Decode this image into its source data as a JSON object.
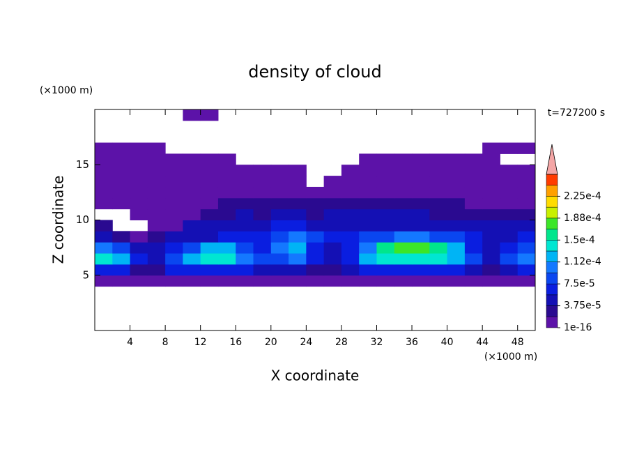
{
  "chart_data": {
    "type": "heatmap",
    "title": "density of cloud",
    "x_label": "X coordinate",
    "y_label": "Z coordinate",
    "x_unit": "(×1000 m)",
    "y_unit": "(×1000 m)",
    "time_label": "t=727200 s",
    "xlim": [
      0,
      50
    ],
    "ylim": [
      0,
      20
    ],
    "xticks": [
      4,
      8,
      12,
      16,
      20,
      24,
      28,
      32,
      36,
      40,
      44,
      48
    ],
    "yticks": [
      5,
      10,
      15
    ],
    "x": [
      1,
      3,
      5,
      7,
      9,
      11,
      13,
      15,
      17,
      19,
      21,
      23,
      25,
      27,
      29,
      31,
      33,
      35,
      37,
      39,
      41,
      43,
      45,
      47,
      49
    ],
    "y": [
      0.5,
      1.5,
      2.5,
      3.5,
      4.5,
      5.5,
      6.5,
      7.5,
      8.5,
      9.5,
      10.5,
      11.5,
      12.5,
      13.5,
      14.5,
      15.5,
      16.5,
      17.5,
      18.5,
      19.5
    ],
    "values": [
      [
        null,
        null,
        null,
        null,
        null,
        null,
        null,
        null,
        null,
        null,
        null,
        null,
        null,
        null,
        null,
        null,
        null,
        null,
        null,
        null,
        null,
        null,
        null,
        null,
        null
      ],
      [
        null,
        null,
        null,
        null,
        null,
        null,
        null,
        null,
        null,
        null,
        null,
        null,
        null,
        null,
        null,
        null,
        null,
        null,
        null,
        null,
        null,
        null,
        null,
        null,
        null
      ],
      [
        null,
        null,
        null,
        null,
        null,
        null,
        null,
        null,
        null,
        null,
        null,
        null,
        null,
        null,
        null,
        null,
        null,
        null,
        null,
        null,
        null,
        null,
        null,
        null,
        null
      ],
      [
        null,
        null,
        null,
        null,
        null,
        null,
        null,
        null,
        null,
        null,
        null,
        null,
        null,
        null,
        null,
        null,
        null,
        null,
        null,
        null,
        null,
        null,
        null,
        null,
        null
      ],
      [
        5e-06,
        5e-06,
        5e-06,
        5e-06,
        5e-06,
        5e-06,
        5e-06,
        5e-06,
        5e-06,
        5e-06,
        5e-06,
        5e-06,
        5e-06,
        5e-06,
        5e-06,
        5e-06,
        5e-06,
        5e-06,
        5e-06,
        5e-06,
        5e-06,
        5e-06,
        5e-06,
        5e-06,
        5e-06
      ],
      [
        6.5e-05,
        6.5e-05,
        2.5e-05,
        2.5e-05,
        6.5e-05,
        6.5e-05,
        6.5e-05,
        6.5e-05,
        6.5e-05,
        4.5e-05,
        4.5e-05,
        4.5e-05,
        2.5e-05,
        2.5e-05,
        4.5e-05,
        6.5e-05,
        6.5e-05,
        6.5e-05,
        6.5e-05,
        6.5e-05,
        6.5e-05,
        4.5e-05,
        2.5e-05,
        4.5e-05,
        6.5e-05
      ],
      [
        0.00014,
        0.00012,
        6.5e-05,
        4.5e-05,
        8e-05,
        0.00012,
        0.00014,
        0.00014,
        0.0001,
        8e-05,
        8e-05,
        0.0001,
        6.5e-05,
        4.5e-05,
        6.5e-05,
        0.00012,
        0.00014,
        0.00014,
        0.00014,
        0.00014,
        0.00012,
        8e-05,
        4.5e-05,
        8e-05,
        0.0001
      ],
      [
        0.0001,
        8e-05,
        4.5e-05,
        4.5e-05,
        6.5e-05,
        8e-05,
        0.00012,
        0.00012,
        8e-05,
        6.5e-05,
        0.0001,
        0.00012,
        6.5e-05,
        4.5e-05,
        6.5e-05,
        0.0001,
        0.00016,
        0.000175,
        0.000175,
        0.00016,
        0.00012,
        6.5e-05,
        4.5e-05,
        6.5e-05,
        8e-05
      ],
      [
        4.5e-05,
        2.5e-05,
        5e-06,
        2.5e-05,
        4.5e-05,
        4.5e-05,
        4.5e-05,
        6.5e-05,
        6.5e-05,
        6.5e-05,
        8e-05,
        0.0001,
        8e-05,
        6.5e-05,
        6.5e-05,
        8e-05,
        8e-05,
        0.0001,
        0.0001,
        8e-05,
        8e-05,
        6.5e-05,
        4.5e-05,
        4.5e-05,
        6.5e-05
      ],
      [
        2.5e-05,
        null,
        null,
        5e-06,
        5e-06,
        4.5e-05,
        4.5e-05,
        4.5e-05,
        4.5e-05,
        4.5e-05,
        6.5e-05,
        6.5e-05,
        4.5e-05,
        4.5e-05,
        4.5e-05,
        4.5e-05,
        4.5e-05,
        4.5e-05,
        4.5e-05,
        4.5e-05,
        4.5e-05,
        4.5e-05,
        4.5e-05,
        4.5e-05,
        4.5e-05
      ],
      [
        null,
        null,
        5e-06,
        5e-06,
        5e-06,
        5e-06,
        2.5e-05,
        2.5e-05,
        4.5e-05,
        2.5e-05,
        4.5e-05,
        4.5e-05,
        2.5e-05,
        4.5e-05,
        4.5e-05,
        4.5e-05,
        4.5e-05,
        4.5e-05,
        4.5e-05,
        2.5e-05,
        2.5e-05,
        2.5e-05,
        2.5e-05,
        2.5e-05,
        2.5e-05
      ],
      [
        5e-06,
        5e-06,
        5e-06,
        5e-06,
        5e-06,
        5e-06,
        5e-06,
        2.5e-05,
        2.5e-05,
        2.5e-05,
        2.5e-05,
        2.5e-05,
        2.5e-05,
        2.5e-05,
        2.5e-05,
        2.5e-05,
        2.5e-05,
        2.5e-05,
        2.5e-05,
        2.5e-05,
        2.5e-05,
        5e-06,
        5e-06,
        5e-06,
        5e-06
      ],
      [
        5e-06,
        5e-06,
        5e-06,
        5e-06,
        5e-06,
        5e-06,
        5e-06,
        5e-06,
        5e-06,
        5e-06,
        5e-06,
        5e-06,
        5e-06,
        5e-06,
        5e-06,
        5e-06,
        5e-06,
        5e-06,
        5e-06,
        5e-06,
        5e-06,
        5e-06,
        5e-06,
        5e-06,
        5e-06
      ],
      [
        5e-06,
        5e-06,
        5e-06,
        5e-06,
        5e-06,
        5e-06,
        5e-06,
        5e-06,
        5e-06,
        5e-06,
        5e-06,
        5e-06,
        null,
        5e-06,
        5e-06,
        5e-06,
        5e-06,
        5e-06,
        5e-06,
        5e-06,
        5e-06,
        5e-06,
        5e-06,
        5e-06,
        5e-06
      ],
      [
        5e-06,
        5e-06,
        5e-06,
        5e-06,
        5e-06,
        5e-06,
        5e-06,
        5e-06,
        5e-06,
        5e-06,
        5e-06,
        5e-06,
        null,
        null,
        5e-06,
        5e-06,
        5e-06,
        5e-06,
        5e-06,
        5e-06,
        5e-06,
        5e-06,
        5e-06,
        5e-06,
        5e-06
      ],
      [
        5e-06,
        5e-06,
        5e-06,
        5e-06,
        5e-06,
        5e-06,
        5e-06,
        5e-06,
        null,
        null,
        null,
        null,
        null,
        null,
        null,
        5e-06,
        5e-06,
        5e-06,
        5e-06,
        5e-06,
        5e-06,
        5e-06,
        5e-06,
        null,
        null
      ],
      [
        5e-06,
        5e-06,
        5e-06,
        5e-06,
        null,
        null,
        null,
        null,
        null,
        null,
        null,
        null,
        null,
        null,
        null,
        null,
        null,
        null,
        null,
        null,
        null,
        null,
        5e-06,
        5e-06,
        5e-06
      ],
      [
        null,
        null,
        null,
        null,
        null,
        null,
        null,
        null,
        null,
        null,
        null,
        null,
        null,
        null,
        null,
        null,
        null,
        null,
        null,
        null,
        null,
        null,
        null,
        null,
        null
      ],
      [
        null,
        null,
        null,
        null,
        null,
        null,
        null,
        null,
        null,
        null,
        null,
        null,
        null,
        null,
        null,
        null,
        null,
        null,
        null,
        null,
        null,
        null,
        null,
        null,
        null
      ],
      [
        null,
        null,
        null,
        null,
        null,
        5e-06,
        5e-06,
        null,
        null,
        null,
        null,
        null,
        null,
        null,
        null,
        null,
        null,
        null,
        null,
        null,
        null,
        null,
        null,
        null,
        null
      ]
    ],
    "colorbar": {
      "levels": [
        1e-16,
        1.875e-05,
        3.75e-05,
        5.625e-05,
        7.5e-05,
        9.375e-05,
        0.0001125,
        0.00013125,
        0.00015,
        0.00016875,
        0.0001875,
        0.00020625,
        0.000225,
        0.00024375,
        0.0002625
      ],
      "colors": [
        "#5c12a8",
        "#2a0a90",
        "#1410b4",
        "#0a1ee0",
        "#0a46f0",
        "#1478ff",
        "#00b4f5",
        "#00e6d2",
        "#00e68c",
        "#3ce628",
        "#c8f000",
        "#ffdc00",
        "#ffa000",
        "#ff3c00"
      ],
      "extend_color": "#f4a6a6",
      "ticks": [
        1e-16,
        {
          "value": 3.75e-05,
          "label": "3.75e-5"
        },
        {
          "value": 7.5e-05,
          "label": "7.5e-5"
        },
        {
          "value": 0.0001125,
          "label": "1.12e-4"
        },
        {
          "value": 0.00015,
          "label": "1.5e-4"
        },
        {
          "value": 0.0001875,
          "label": "1.88e-4"
        },
        {
          "value": 0.000225,
          "label": "2.25e-4"
        }
      ]
    }
  }
}
